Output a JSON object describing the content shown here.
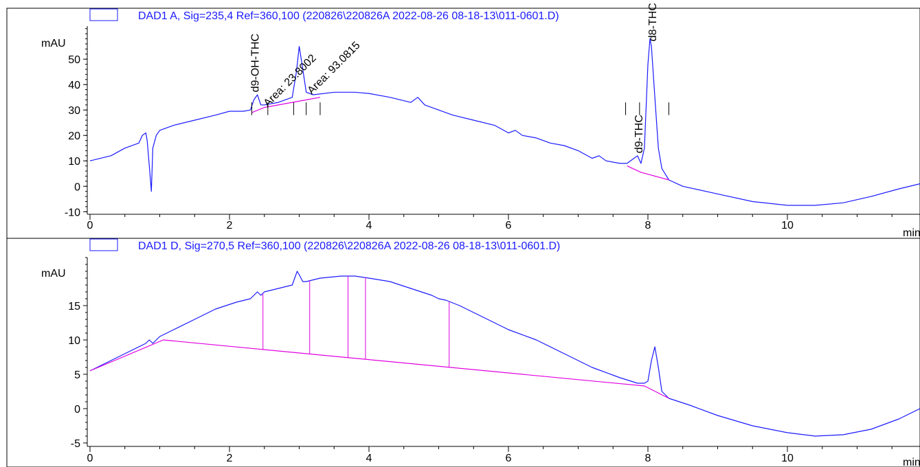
{
  "colors": {
    "signal": "#1a1aff",
    "baseline": "#e000e0",
    "axis": "#000000",
    "legend_box": "#1a1aff"
  },
  "chart_data": [
    {
      "type": "line",
      "panel": "A",
      "legend": "DAD1 A, Sig=235,4 Ref=360,100 (220826\\220826A 2022-08-26 08-18-13\\011-0601.D)",
      "ylabel": "mAU",
      "xlabel": "min",
      "xlim": [
        0,
        11.9
      ],
      "ylim": [
        -11,
        63
      ],
      "xticks": [
        0,
        2,
        4,
        6,
        8,
        10
      ],
      "yticks": [
        -10,
        0,
        10,
        20,
        30,
        40,
        50
      ],
      "x_tick_labels": [
        "0",
        "2",
        "4",
        "6",
        "8",
        "10"
      ],
      "y_tick_labels": [
        "-10",
        "0",
        "10",
        "20",
        "30",
        "40",
        "50"
      ],
      "series": [
        {
          "role": "signal",
          "x": [
            0,
            0.3,
            0.5,
            0.7,
            0.75,
            0.8,
            0.82,
            0.85,
            0.88,
            0.9,
            0.95,
            1.0,
            1.2,
            1.5,
            1.8,
            2.0,
            2.2,
            2.3,
            2.35,
            2.4,
            2.45,
            2.5,
            2.7,
            2.9,
            2.96,
            3.0,
            3.04,
            3.1,
            3.2,
            3.5,
            3.8,
            4.0,
            4.3,
            4.6,
            4.7,
            4.8,
            5.0,
            5.2,
            5.5,
            5.8,
            6.0,
            6.1,
            6.2,
            6.4,
            6.6,
            6.8,
            7.0,
            7.2,
            7.3,
            7.4,
            7.6,
            7.7,
            7.8,
            7.85,
            7.9,
            7.95,
            8.0,
            8.03,
            8.05,
            8.1,
            8.15,
            8.2,
            8.3,
            8.5,
            9.0,
            9.5,
            10.0,
            10.4,
            10.8,
            11.2,
            11.6,
            11.9
          ],
          "y": [
            10,
            12,
            15,
            17,
            20,
            21,
            18,
            8,
            -2,
            15,
            20,
            22,
            24,
            26,
            28,
            29.5,
            29.5,
            30,
            34,
            36,
            32,
            32,
            33,
            35,
            45,
            55,
            48,
            37,
            36,
            37,
            37,
            36.5,
            35,
            33,
            35,
            32,
            30,
            28,
            26,
            24,
            21,
            22,
            20,
            19,
            17,
            16,
            14,
            11,
            12,
            10,
            9,
            9,
            11,
            12,
            9,
            15,
            48,
            58,
            55,
            35,
            15,
            7,
            2.5,
            0,
            -3,
            -6,
            -7.5,
            -7.5,
            -6.5,
            -4,
            -1,
            1
          ]
        },
        {
          "role": "baseline",
          "x": [
            2.32,
            2.5,
            2.5,
            3.1,
            3.1,
            3.3
          ],
          "y": [
            29,
            31,
            31,
            34,
            34,
            35
          ]
        },
        {
          "role": "baseline",
          "x": [
            7.7,
            7.9,
            8.3
          ],
          "y": [
            8,
            5.5,
            2.5
          ]
        }
      ],
      "peak_labels": [
        "d9-OH-THC",
        "Area: 23.8002",
        "Area: 93.0815",
        "d9-THC",
        "d8-THC"
      ]
    },
    {
      "type": "line",
      "panel": "D",
      "legend": "DAD1 D, Sig=270,5 Ref=360,100 (220826\\220826A 2022-08-26 08-18-13\\011-0601.D)",
      "ylabel": "mAU",
      "xlabel": "min",
      "xlim": [
        0,
        11.9
      ],
      "ylim": [
        -5.5,
        22
      ],
      "xticks": [
        0,
        2,
        4,
        6,
        8,
        10
      ],
      "yticks": [
        -5,
        0,
        5,
        10,
        15
      ],
      "x_tick_labels": [
        "0",
        "2",
        "4",
        "6",
        "8",
        "10"
      ],
      "y_tick_labels": [
        "-5",
        "0",
        "5",
        "10",
        "15"
      ],
      "series": [
        {
          "role": "signal",
          "x": [
            0,
            0.3,
            0.6,
            0.8,
            0.85,
            0.9,
            1.0,
            1.2,
            1.5,
            1.8,
            2.1,
            2.3,
            2.4,
            2.45,
            2.5,
            2.7,
            2.9,
            2.97,
            3.0,
            3.05,
            3.1,
            3.3,
            3.6,
            3.8,
            4.0,
            4.3,
            4.6,
            4.9,
            5.0,
            5.1,
            5.3,
            5.6,
            6.0,
            6.4,
            6.8,
            7.2,
            7.6,
            7.85,
            7.95,
            8.0,
            8.05,
            8.1,
            8.15,
            8.2,
            8.3,
            8.6,
            9.0,
            9.5,
            10.0,
            10.4,
            10.8,
            11.2,
            11.6,
            11.9
          ],
          "y": [
            5.5,
            7,
            8.5,
            9.5,
            10,
            9.5,
            10.5,
            11.5,
            13,
            14.5,
            15.5,
            16,
            17,
            16.5,
            17,
            17.5,
            18,
            20,
            19.5,
            18.5,
            18.5,
            19,
            19.3,
            19.3,
            19,
            18.5,
            17.5,
            16.5,
            16,
            15.8,
            15,
            13.5,
            11.5,
            10,
            8,
            6,
            4.5,
            3.7,
            3.7,
            4,
            7,
            9,
            6,
            2.5,
            1.5,
            0.5,
            -1,
            -2.5,
            -3.5,
            -4,
            -3.8,
            -3,
            -1.5,
            0
          ]
        },
        {
          "role": "baseline",
          "x": [
            0,
            1.05,
            7.95,
            8.3
          ],
          "y": [
            5.5,
            10,
            3.3,
            1.5
          ]
        }
      ],
      "drop_lines_x": [
        2.48,
        3.15,
        3.7,
        3.95,
        5.15
      ]
    }
  ]
}
